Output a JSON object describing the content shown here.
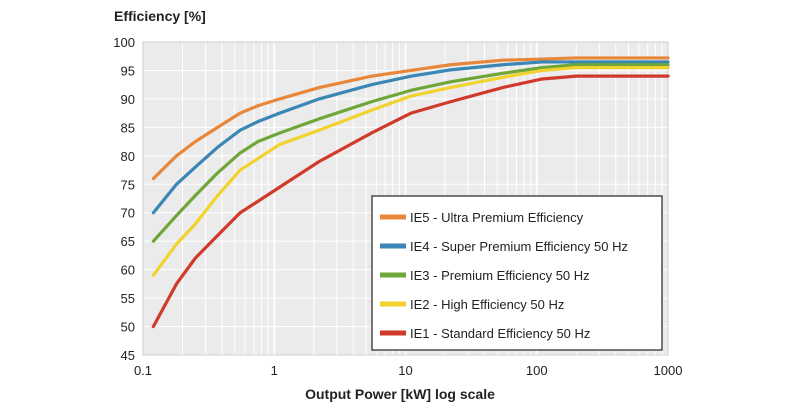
{
  "chart_data": {
    "type": "line",
    "xscale": "log",
    "ylabel": "Efficiency  [%]",
    "xlabel": "Output Power [kW]  log scale",
    "xlim": [
      0.1,
      1000
    ],
    "ylim": [
      45,
      100
    ],
    "xticks": [
      "0.1",
      "1",
      "10",
      "100",
      "1000"
    ],
    "yticks": [
      "45",
      "50",
      "55",
      "60",
      "65",
      "70",
      "75",
      "80",
      "85",
      "90",
      "95",
      "100"
    ],
    "grid": true,
    "legend_position": "lower-right",
    "series": [
      {
        "name": "IE5 - Ultra Premium Efficiency",
        "color": "#e8873a",
        "x": [
          0.12,
          0.18,
          0.25,
          0.37,
          0.55,
          0.75,
          1.1,
          2.2,
          5.5,
          11,
          22,
          55,
          110,
          200,
          1000
        ],
        "y": [
          76,
          80,
          82.5,
          85,
          87.5,
          88.8,
          90,
          92,
          94,
          95,
          96,
          96.8,
          97,
          97.2,
          97.2
        ]
      },
      {
        "name": "IE4 - Super Premium Efficiency 50 Hz",
        "color": "#3a86b5",
        "x": [
          0.12,
          0.18,
          0.25,
          0.37,
          0.55,
          0.75,
          1.1,
          2.2,
          5.5,
          11,
          22,
          55,
          110,
          200,
          1000
        ],
        "y": [
          70,
          75,
          78,
          81.5,
          84.5,
          86,
          87.5,
          90,
          92.5,
          94,
          95.1,
          96,
          96.5,
          96.5,
          96.5
        ]
      },
      {
        "name": "IE3 - Premium Efficiency 50 Hz",
        "color": "#6fa63a",
        "x": [
          0.12,
          0.18,
          0.25,
          0.37,
          0.55,
          0.75,
          1.1,
          2.2,
          5.5,
          11,
          22,
          55,
          110,
          200,
          1000
        ],
        "y": [
          65,
          69.5,
          73,
          77,
          80.5,
          82.5,
          84,
          86.5,
          89.5,
          91.5,
          93,
          94.5,
          95.5,
          96,
          96
        ]
      },
      {
        "name": "IE2 - High Efficiency 50 Hz",
        "color": "#f2d22e",
        "x": [
          0.12,
          0.18,
          0.25,
          0.37,
          0.55,
          0.75,
          1.1,
          2.2,
          5.5,
          11,
          22,
          55,
          110,
          200,
          1000
        ],
        "y": [
          59,
          64.5,
          68,
          73,
          77.5,
          79.5,
          82,
          84.5,
          88,
          90.5,
          92,
          93.8,
          95,
          95.5,
          95.5
        ]
      },
      {
        "name": "IE1 - Standard Efficiency 50 Hz",
        "color": "#d03a2a",
        "x": [
          0.12,
          0.18,
          0.25,
          0.37,
          0.55,
          0.75,
          1.1,
          2.2,
          5.5,
          11,
          22,
          55,
          110,
          200,
          1000
        ],
        "y": [
          50,
          57.5,
          62,
          66,
          70,
          72,
          74.5,
          79,
          84,
          87.5,
          89.5,
          92,
          93.5,
          94,
          94
        ]
      }
    ]
  }
}
